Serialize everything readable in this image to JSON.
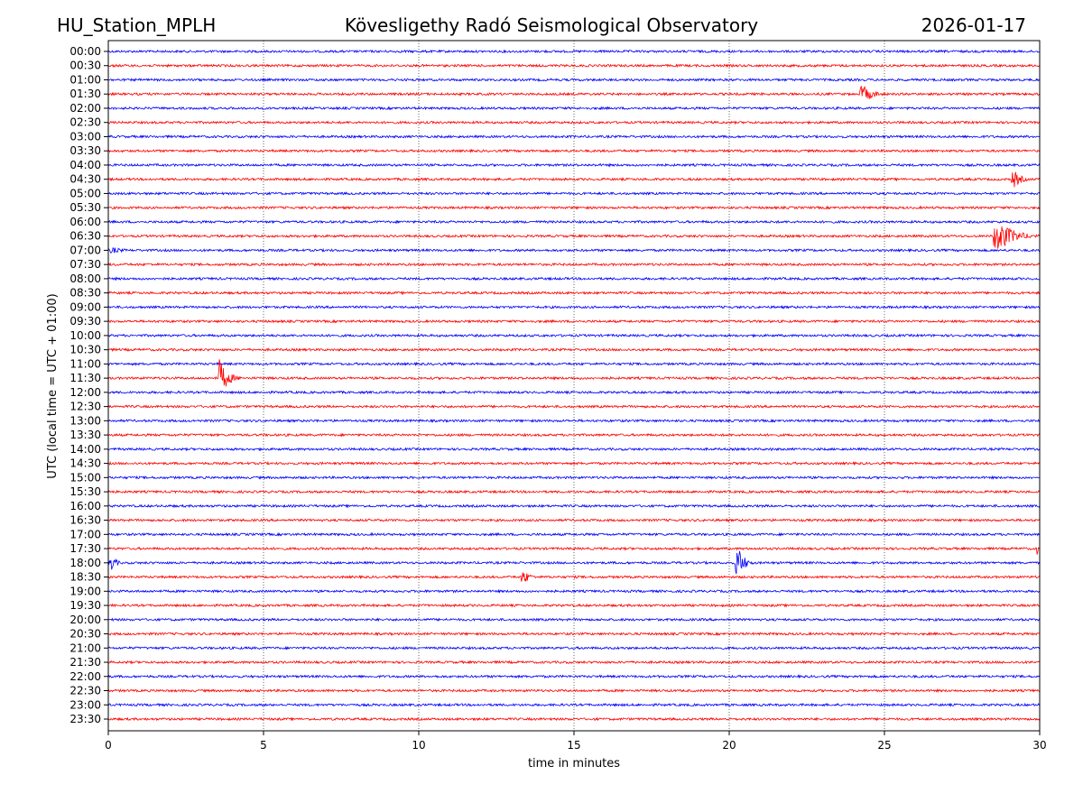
{
  "header": {
    "station": "HU_Station_MPLH",
    "observatory": "Kövesligethy Radó Seismological Observatory",
    "date": "2026-01-17"
  },
  "chart_data": {
    "type": "line",
    "title": "Kövesligethy Radó Seismological Observatory",
    "xlabel": "time in minutes",
    "ylabel": "UTC (local time = UTC + 01:00)",
    "xlim": [
      0,
      30
    ],
    "xticks": [
      "0",
      "5",
      "10",
      "15",
      "20",
      "25",
      "30"
    ],
    "grid": "vertical dotted at x ticks",
    "colors": [
      "#0000ff",
      "#ff0000"
    ],
    "rows": [
      "00:00",
      "00:30",
      "01:00",
      "01:30",
      "02:00",
      "02:30",
      "03:00",
      "03:30",
      "04:00",
      "04:30",
      "05:00",
      "05:30",
      "06:00",
      "06:30",
      "07:00",
      "07:30",
      "08:00",
      "08:30",
      "09:00",
      "09:30",
      "10:00",
      "10:30",
      "11:00",
      "11:30",
      "12:00",
      "12:30",
      "13:00",
      "13:30",
      "14:00",
      "14:30",
      "15:00",
      "15:30",
      "16:00",
      "16:30",
      "17:00",
      "17:30",
      "18:00",
      "18:30",
      "19:00",
      "19:30",
      "20:00",
      "20:30",
      "21:00",
      "21:30",
      "22:00",
      "22:30",
      "23:00",
      "23:30"
    ],
    "noise_level": 0.08,
    "events": [
      {
        "row": "00:00",
        "start": 9.5,
        "end": 10.0,
        "amplitude": 0.15
      },
      {
        "row": "01:30",
        "start": 24.2,
        "end": 25.2,
        "amplitude": 0.9
      },
      {
        "row": "04:30",
        "start": 29.1,
        "end": 29.8,
        "amplitude": 0.9
      },
      {
        "row": "06:30",
        "start": 28.5,
        "end": 30.0,
        "amplitude": 1.6
      },
      {
        "row": "07:00",
        "start": 0.0,
        "end": 1.4,
        "amplitude": 0.3
      },
      {
        "row": "11:30",
        "start": 3.5,
        "end": 4.3,
        "amplitude": 1.8
      },
      {
        "row": "14:00",
        "start": 21.3,
        "end": 21.7,
        "amplitude": 0.2
      },
      {
        "row": "17:30",
        "start": 29.9,
        "end": 30.0,
        "amplitude": 0.8
      },
      {
        "row": "18:00",
        "start": 0.0,
        "end": 0.5,
        "amplitude": 1.0
      },
      {
        "row": "18:00",
        "start": 20.2,
        "end": 20.8,
        "amplitude": 1.8
      },
      {
        "row": "18:30",
        "start": 13.3,
        "end": 13.9,
        "amplitude": 0.8
      }
    ]
  }
}
